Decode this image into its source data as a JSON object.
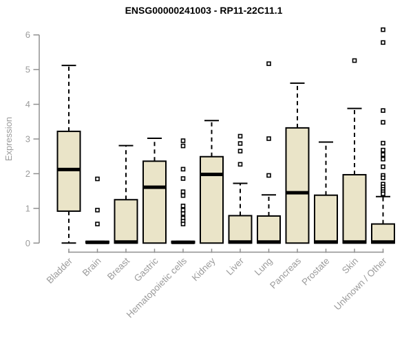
{
  "chart_data": {
    "type": "boxplot",
    "title": "ENSG00000241003 - RP11-22C11.1",
    "ylabel": "Expression",
    "xlabel": "",
    "ylim": [
      0,
      6.3
    ],
    "yticks": [
      0,
      1,
      2,
      3,
      4,
      5,
      6
    ],
    "grid": false,
    "legend": null,
    "categories": [
      "Bladder",
      "Brain",
      "Breast",
      "Gastric",
      "Hematopoietic cells",
      "Kidney",
      "Liver",
      "Lung",
      "Pancreas",
      "Prostate",
      "Skin",
      "Unknown / Other"
    ],
    "series": [
      {
        "name": "Bladder",
        "low": 0,
        "q1": 0.92,
        "median": 2.12,
        "q3": 3.22,
        "high": 5.12,
        "outliers": []
      },
      {
        "name": "Brain",
        "low": 0,
        "q1": 0,
        "median": 0.02,
        "q3": 0.05,
        "high": 0.05,
        "outliers": [
          1.85,
          0.95,
          0.55
        ]
      },
      {
        "name": "Breast",
        "low": 0,
        "q1": 0,
        "median": 0.03,
        "q3": 1.25,
        "high": 2.81,
        "outliers": []
      },
      {
        "name": "Gastric",
        "low": 0,
        "q1": 0,
        "median": 1.61,
        "q3": 2.36,
        "high": 3.02,
        "outliers": []
      },
      {
        "name": "Hematopoietic cells",
        "low": 0,
        "q1": 0,
        "median": 0.02,
        "q3": 0.05,
        "high": 0.05,
        "outliers": [
          2.95,
          2.8,
          2.13,
          1.86,
          1.48,
          1.37,
          1.07,
          0.95,
          0.85,
          0.72,
          0.63,
          0.55
        ]
      },
      {
        "name": "Kidney",
        "low": 0,
        "q1": 0,
        "median": 1.98,
        "q3": 2.49,
        "high": 3.53,
        "outliers": []
      },
      {
        "name": "Liver",
        "low": 0,
        "q1": 0,
        "median": 0.03,
        "q3": 0.79,
        "high": 1.72,
        "outliers": [
          3.08,
          2.87,
          2.65,
          2.27
        ]
      },
      {
        "name": "Lung",
        "low": 0,
        "q1": 0,
        "median": 0.03,
        "q3": 0.78,
        "high": 1.39,
        "outliers": [
          5.17,
          3.01,
          1.95
        ]
      },
      {
        "name": "Pancreas",
        "low": 0,
        "q1": 0,
        "median": 1.45,
        "q3": 3.32,
        "high": 4.61,
        "outliers": []
      },
      {
        "name": "Prostate",
        "low": 0,
        "q1": 0,
        "median": 0.03,
        "q3": 1.38,
        "high": 2.91,
        "outliers": []
      },
      {
        "name": "Skin",
        "low": 0,
        "q1": 0,
        "median": 0.03,
        "q3": 1.97,
        "high": 3.88,
        "outliers": [
          5.26
        ]
      },
      {
        "name": "Unknown / Other",
        "low": 0,
        "q1": 0,
        "median": 0.03,
        "q3": 0.55,
        "high": 1.34,
        "outliers": [
          6.15,
          5.78,
          3.82,
          3.48,
          2.88,
          2.68,
          2.55,
          2.42,
          2.2,
          1.95,
          1.88,
          1.7,
          1.62,
          1.55,
          1.48,
          1.42
        ]
      }
    ],
    "colors": {
      "box_fill": "#EAE4C8",
      "box_stroke": "#000000",
      "median": "#000000",
      "whisker": "#000000",
      "outlier_stroke": "#000000",
      "outlier_fill": "#FFFFFF",
      "axis": "#8F8F8F",
      "tick_text": "#9B9B9B",
      "title": "#000000",
      "background": "#FFFFFF"
    }
  }
}
